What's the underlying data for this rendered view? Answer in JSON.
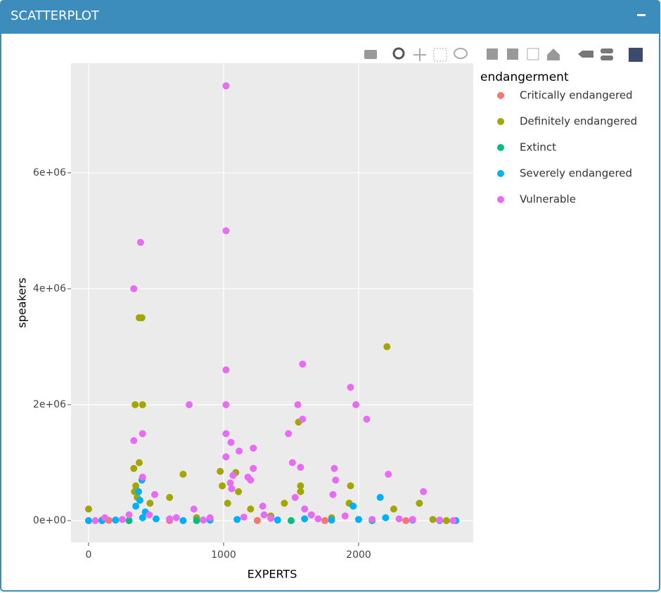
{
  "panel_title": "SCATTERPLOT",
  "chart_data": {
    "type": "scatter",
    "x_label": "EXPERTS",
    "y_label": "speakers",
    "legend_title": "endangerment",
    "grid": true,
    "legend": "right",
    "xlim": [
      -130,
      2849
    ],
    "xticks": [
      0,
      1000,
      2000
    ],
    "ylim": [
      -375758,
      7890000
    ],
    "yticks": [
      {
        "value": 0,
        "label": "0e+00"
      },
      {
        "value": 2000000,
        "label": "2e+06"
      },
      {
        "value": 4000000,
        "label": "4e+06"
      },
      {
        "value": 6000000,
        "label": "6e+06"
      }
    ],
    "series": [
      {
        "name": "Critically endangered",
        "color": "#F8766D",
        "x": [
          150,
          600,
          1250,
          1750,
          2350
        ],
        "values": [
          5000,
          0,
          2000,
          1000,
          0
        ]
      },
      {
        "name": "Definitely endangered",
        "color": "#A3A500",
        "x": [
          2210,
          375,
          395,
          345,
          400,
          1555,
          375,
          335,
          975,
          1090,
          700,
          1940,
          1570,
          350,
          990,
          340,
          1570,
          1110,
          360,
          600,
          455,
          1450,
          1930,
          2450,
          2260,
          1030,
          0,
          1200,
          1650,
          800,
          1800,
          2550,
          100,
          1350,
          2650
        ],
        "values": [
          3000000,
          3500000,
          3500000,
          2000000,
          2000000,
          1700000,
          1000000,
          900000,
          850000,
          830000,
          800000,
          600000,
          600000,
          600000,
          600000,
          500000,
          500000,
          500000,
          400000,
          400000,
          300000,
          300000,
          300000,
          300000,
          200000,
          300000,
          200000,
          200000,
          100000,
          50000,
          50000,
          20000,
          10000,
          80000,
          0
        ]
      },
      {
        "name": "Extinct",
        "color": "#00BF7D",
        "x": [
          300,
          800,
          1500,
          2100
        ],
        "values": [
          0,
          0,
          0,
          0
        ]
      },
      {
        "name": "Severely endangered",
        "color": "#00B0F6",
        "x": [
          2160,
          395,
          370,
          380,
          1960,
          350,
          420,
          0,
          100,
          200,
          400,
          500,
          700,
          900,
          1100,
          1400,
          1600,
          1800,
          2000,
          2200,
          2400,
          2600,
          2720
        ],
        "values": [
          400000,
          700000,
          500000,
          350000,
          250000,
          250000,
          150000,
          0,
          0,
          10000,
          50000,
          30000,
          0,
          10000,
          20000,
          10000,
          30000,
          10000,
          20000,
          50000,
          10000,
          0,
          0
        ]
      },
      {
        "name": "Vulnerable",
        "color": "#E76BF3",
        "x": [
          1018,
          1018,
          385,
          335,
          1018,
          1585,
          1940,
          1550,
          1980,
          745,
          1018,
          1585,
          2060,
          1018,
          400,
          1480,
          335,
          1055,
          1220,
          1115,
          1510,
          1018,
          1570,
          1820,
          1220,
          2220,
          1070,
          1180,
          1050,
          1830,
          400,
          1200,
          1060,
          1810,
          490,
          1530,
          2480,
          1290,
          1600,
          780,
          120,
          250,
          600,
          900,
          1150,
          1350,
          1700,
          1900,
          2100,
          2300,
          2600,
          2700,
          50,
          300,
          450,
          650,
          850,
          1300,
          1650,
          2400
        ],
        "values": [
          7500000,
          5000000,
          4800000,
          4000000,
          2600000,
          2700000,
          2300000,
          2000000,
          2000000,
          2000000,
          2000000,
          1750000,
          1750000,
          1500000,
          1500000,
          1500000,
          1380000,
          1350000,
          1250000,
          1200000,
          1000000,
          1100000,
          920000,
          900000,
          900000,
          800000,
          780000,
          750000,
          650000,
          700000,
          750000,
          700000,
          550000,
          450000,
          450000,
          400000,
          500000,
          250000,
          200000,
          200000,
          50000,
          20000,
          30000,
          50000,
          60000,
          40000,
          30000,
          80000,
          20000,
          30000,
          10000,
          0,
          0,
          100000,
          100000,
          50000,
          10000,
          100000,
          100000,
          20000
        ]
      }
    ]
  }
}
